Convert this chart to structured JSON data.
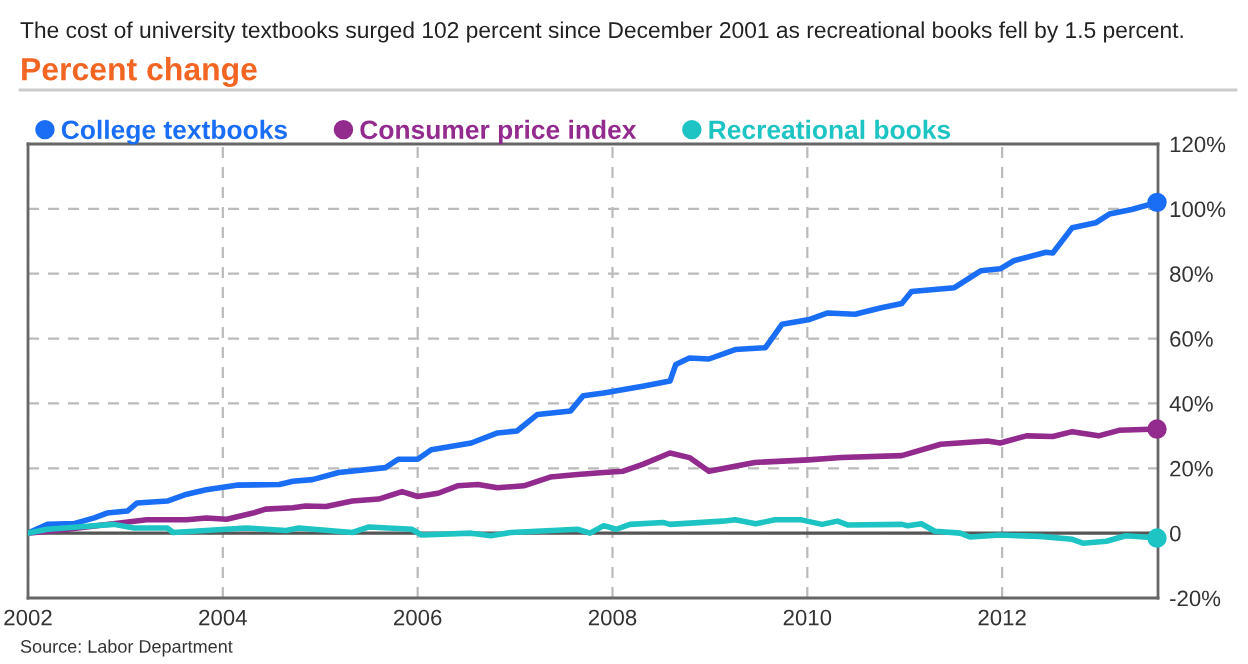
{
  "chart_data": {
    "type": "line",
    "title": "The cost of university textbooks surged 102 percent since December 2001 as recreational books fell by 1.5 percent.",
    "subtitle": "Percent change",
    "annotations": [
      "Source: Labor Department"
    ],
    "xlim": [
      2002,
      2013.6
    ],
    "xticks": [
      2002,
      2004,
      2006,
      2008,
      2010,
      2012
    ],
    "ylim": [
      -20,
      120
    ],
    "yticks": [
      {
        "value": -20,
        "label": "-20%"
      },
      0,
      {
        "value": 20,
        "label": "20%"
      },
      {
        "value": 40,
        "label": "40%"
      },
      {
        "value": 60,
        "label": "60%"
      },
      {
        "value": 80,
        "label": "80%"
      },
      {
        "value": 100,
        "label": "100%"
      },
      {
        "value": 120,
        "label": "120%"
      }
    ],
    "grid": true,
    "legend": "top left",
    "line_style": "solid",
    "ref_lines": [
      {
        "axis": "y",
        "value": 0,
        "color": "#555555",
        "line_style": "solid"
      }
    ],
    "series": [
      {
        "name": "College textbooks",
        "color": "#1a6ef5",
        "x": [
          2002.0,
          2002.2,
          2002.48,
          2002.68,
          2002.81,
          2003.02,
          2003.12,
          2003.43,
          2003.63,
          2003.83,
          2004.14,
          2004.58,
          2004.72,
          2004.92,
          2005.19,
          2005.67,
          2005.8,
          2006.0,
          2006.14,
          2006.55,
          2006.82,
          2007.02,
          2007.23,
          2007.57,
          2007.7,
          2007.91,
          2008.31,
          2008.59,
          2008.65,
          2008.79,
          2008.99,
          2009.26,
          2009.57,
          2009.74,
          2010.01,
          2010.21,
          2010.49,
          2010.76,
          2010.97,
          2011.07,
          2011.51,
          2011.78,
          2011.98,
          2012.12,
          2012.45,
          2012.52,
          2012.72,
          2012.96,
          2013.1,
          2013.33,
          2013.59
        ],
        "values": [
          0,
          2.7,
          3,
          4.7,
          6.2,
          6.8,
          9.3,
          9.9,
          12,
          13.4,
          14.8,
          15,
          16,
          16.5,
          18.7,
          20.2,
          22.8,
          22.8,
          25.7,
          27.8,
          30.9,
          31.5,
          36.6,
          37.7,
          42.4,
          43.2,
          45.3,
          46.9,
          52,
          54,
          53.7,
          56.6,
          57.2,
          64.4,
          65.8,
          67.9,
          67.5,
          69.5,
          70.8,
          74.5,
          75.7,
          80.9,
          81.5,
          84,
          86.6,
          86.4,
          94.2,
          95.7,
          98.4,
          99.8,
          102
        ]
      },
      {
        "name": "Consumer price index",
        "color": "#932b8f",
        "x": [
          2002.0,
          2002.41,
          2002.81,
          2003.22,
          2003.63,
          2003.83,
          2004.04,
          2004.31,
          2004.44,
          2004.72,
          2004.85,
          2005.06,
          2005.33,
          2005.6,
          2005.84,
          2006.0,
          2006.21,
          2006.41,
          2006.62,
          2006.82,
          2007.09,
          2007.36,
          2007.64,
          2007.91,
          2008.11,
          2008.31,
          2008.59,
          2008.79,
          2008.99,
          2009.46,
          2010.01,
          2010.35,
          2010.97,
          2011.37,
          2011.85,
          2011.98,
          2012.25,
          2012.52,
          2012.72,
          2012.99,
          2013.2,
          2013.59
        ],
        "values": [
          0,
          1.2,
          2.7,
          4.1,
          4.1,
          4.7,
          4.3,
          6.2,
          7.4,
          7.8,
          8.4,
          8.2,
          9.9,
          10.5,
          12.8,
          11.3,
          12.3,
          14.6,
          15,
          14,
          14.6,
          17.3,
          18.1,
          18.7,
          19.1,
          21.2,
          24.7,
          23.3,
          19.1,
          21.8,
          22.6,
          23.3,
          23.9,
          27.4,
          28.4,
          27.8,
          30,
          29.8,
          31.3,
          30,
          31.7,
          32.1
        ]
      },
      {
        "name": "Recreational books",
        "color": "#1ec4c4",
        "x": [
          2002.0,
          2002.2,
          2002.61,
          2002.88,
          2003.09,
          2003.43,
          2003.49,
          2004.24,
          2004.65,
          2004.78,
          2005.33,
          2005.5,
          2005.94,
          2006.04,
          2006.55,
          2006.75,
          2006.96,
          2007.64,
          2007.77,
          2007.91,
          2008.04,
          2008.18,
          2008.52,
          2008.59,
          2009.13,
          2009.26,
          2009.47,
          2009.67,
          2009.94,
          2010.15,
          2010.31,
          2010.42,
          2010.97,
          2011.03,
          2011.17,
          2011.31,
          2011.57,
          2011.67,
          2011.98,
          2012.39,
          2012.72,
          2012.83,
          2013.07,
          2013.27,
          2013.59
        ],
        "values": [
          0,
          1.2,
          2.1,
          2.7,
          1.6,
          1.6,
          0.2,
          1.6,
          0.8,
          1.6,
          0.2,
          1.9,
          1.2,
          -0.6,
          0,
          -0.8,
          0.2,
          1.2,
          0,
          2.3,
          1.2,
          2.7,
          3.3,
          2.7,
          3.7,
          4.1,
          2.9,
          4.1,
          4.1,
          2.7,
          3.7,
          2.5,
          2.7,
          2.3,
          2.9,
          0.6,
          0,
          -1.2,
          -0.6,
          -1.0,
          -1.9,
          -3.1,
          -2.5,
          -0.8,
          -1.5
        ]
      }
    ]
  }
}
